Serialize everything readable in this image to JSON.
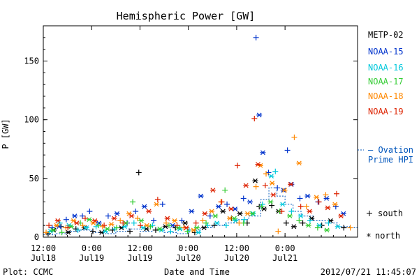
{
  "chart_data": {
    "type": "scatter",
    "title": "Hemispheric Power [GW]",
    "ylabel": "P [GW]",
    "xlabel": "Date and Time",
    "ylim": [
      0,
      180
    ],
    "yticks": [
      0,
      50,
      100,
      150
    ],
    "xlim": [
      -12,
      66
    ],
    "xticks": [
      {
        "x": -12,
        "line1": "12:00",
        "line2": "Jul18"
      },
      {
        "x": 0,
        "line1": "0:00",
        "line2": "Jul19"
      },
      {
        "x": 12,
        "line1": "12:00",
        "line2": "Jul19"
      },
      {
        "x": 24,
        "line1": "0:00",
        "line2": "Jul20"
      },
      {
        "x": 36,
        "line1": "12:00",
        "line2": "Jul20"
      },
      {
        "x": 48,
        "line1": "0:00",
        "line2": "Jul21"
      }
    ],
    "footer_left": "Plot: CCMC",
    "footer_right": "2012/07/21 11:45:07",
    "series": [
      {
        "name": "METP-02",
        "color": "#000000",
        "points": [
          [
            -10.8,
            3,
            "south"
          ],
          [
            -9.4,
            6,
            "north"
          ],
          [
            -7.6,
            9,
            "south"
          ],
          [
            -5.8,
            4,
            "north"
          ],
          [
            -3.9,
            7,
            "south"
          ],
          [
            -1.8,
            8,
            "north"
          ],
          [
            0.3,
            5,
            "south"
          ],
          [
            2.5,
            4,
            "north"
          ],
          [
            5.2,
            6,
            "south"
          ],
          [
            7.4,
            8,
            "north"
          ],
          [
            9.5,
            5,
            "south"
          ],
          [
            11.7,
            55,
            "south"
          ],
          [
            13.6,
            7,
            "north"
          ],
          [
            15.9,
            6,
            "south"
          ],
          [
            18.3,
            9,
            "north"
          ],
          [
            20.8,
            8,
            "south"
          ],
          [
            23.2,
            12,
            "north"
          ],
          [
            25.6,
            4,
            "south"
          ],
          [
            27.9,
            8,
            "north"
          ],
          [
            30.4,
            10,
            "south"
          ],
          [
            32.6,
            22,
            "north"
          ],
          [
            34.7,
            16,
            "south"
          ],
          [
            36.8,
            20,
            "north"
          ],
          [
            38.6,
            12,
            "south"
          ],
          [
            40.6,
            48,
            "north"
          ],
          [
            41.6,
            26,
            "south"
          ],
          [
            42.8,
            24,
            "north"
          ],
          [
            44.7,
            27,
            "south"
          ],
          [
            46.4,
            22,
            "north"
          ],
          [
            48.3,
            12,
            "south"
          ],
          [
            50.2,
            9,
            "north"
          ],
          [
            52.4,
            12,
            "south"
          ],
          [
            54.6,
            16,
            "north"
          ],
          [
            57.1,
            10,
            "south"
          ],
          [
            59.3,
            14,
            "north"
          ],
          [
            62.6,
            8,
            "south"
          ]
        ]
      },
      {
        "name": "NOAA-15",
        "color": "#0033cc",
        "points": [
          [
            -9.8,
            8,
            "south"
          ],
          [
            -8.1,
            9,
            "north"
          ],
          [
            -6.3,
            15,
            "south"
          ],
          [
            -4.2,
            18,
            "north"
          ],
          [
            -2.3,
            18,
            "south"
          ],
          [
            -0.5,
            22,
            "south"
          ],
          [
            1.8,
            12,
            "north"
          ],
          [
            4.1,
            18,
            "south"
          ],
          [
            6.3,
            20,
            "north"
          ],
          [
            8.8,
            12,
            "south"
          ],
          [
            10.9,
            22,
            "south"
          ],
          [
            13.1,
            26,
            "north"
          ],
          [
            15.4,
            14,
            "south"
          ],
          [
            17.6,
            28,
            "south"
          ],
          [
            20.1,
            10,
            "north"
          ],
          [
            22.4,
            14,
            "south"
          ],
          [
            24.8,
            22,
            "north"
          ],
          [
            27.1,
            35,
            "north"
          ],
          [
            29.4,
            18,
            "south"
          ],
          [
            31.5,
            26,
            "north"
          ],
          [
            33.6,
            28,
            "south"
          ],
          [
            35.6,
            24,
            "north"
          ],
          [
            37.7,
            33,
            "south"
          ],
          [
            39.3,
            30,
            "north"
          ],
          [
            40.8,
            170,
            "south"
          ],
          [
            41.6,
            104,
            "north"
          ],
          [
            42.5,
            72,
            "north"
          ],
          [
            43.9,
            55,
            "south"
          ],
          [
            46.1,
            42,
            "south"
          ],
          [
            47.6,
            40,
            "north"
          ],
          [
            48.6,
            74,
            "south"
          ],
          [
            49.6,
            45,
            "north"
          ],
          [
            51.7,
            33,
            "south"
          ],
          [
            53.6,
            35,
            "north"
          ],
          [
            56.2,
            30,
            "south"
          ],
          [
            58.3,
            33,
            "north"
          ],
          [
            60.6,
            26,
            "south"
          ],
          [
            62.5,
            20,
            "north"
          ]
        ]
      },
      {
        "name": "NOAA-16",
        "color": "#00c8dc",
        "points": [
          [
            -10.2,
            5,
            "north"
          ],
          [
            -7.9,
            12,
            "south"
          ],
          [
            -5.6,
            10,
            "north"
          ],
          [
            -3.4,
            6,
            "south"
          ],
          [
            -1.3,
            8,
            "north"
          ],
          [
            1.1,
            9,
            "south"
          ],
          [
            3.4,
            5,
            "north"
          ],
          [
            5.7,
            7,
            "south"
          ],
          [
            8.2,
            9,
            "north"
          ],
          [
            10.5,
            12,
            "south"
          ],
          [
            12.8,
            8,
            "north"
          ],
          [
            15.1,
            10,
            "south"
          ],
          [
            17.3,
            6,
            "north"
          ],
          [
            19.6,
            5,
            "south"
          ],
          [
            21.9,
            7,
            "north"
          ],
          [
            24.2,
            6,
            "south"
          ],
          [
            26.5,
            4,
            "north"
          ],
          [
            28.8,
            10,
            "south"
          ],
          [
            31.1,
            12,
            "north"
          ],
          [
            33.4,
            10,
            "south"
          ],
          [
            35.7,
            14,
            "north"
          ],
          [
            37.9,
            15,
            "south"
          ],
          [
            40.1,
            20,
            "north"
          ],
          [
            42.4,
            28,
            "south"
          ],
          [
            44.6,
            52,
            "north"
          ],
          [
            45.6,
            56,
            "south"
          ],
          [
            47.4,
            28,
            "north"
          ],
          [
            49.6,
            22,
            "south"
          ],
          [
            51.9,
            18,
            "north"
          ],
          [
            54.2,
            14,
            "south"
          ],
          [
            56.5,
            10,
            "north"
          ],
          [
            58.8,
            12,
            "south"
          ],
          [
            61.1,
            9,
            "north"
          ]
        ]
      },
      {
        "name": "NOAA-17",
        "color": "#33cc33",
        "points": [
          [
            -9.6,
            6,
            "north"
          ],
          [
            -7.4,
            4,
            "south"
          ],
          [
            -5.1,
            9,
            "north"
          ],
          [
            -2.8,
            12,
            "south"
          ],
          [
            -0.6,
            15,
            "north"
          ],
          [
            1.7,
            10,
            "south"
          ],
          [
            3.9,
            7,
            "north"
          ],
          [
            6.2,
            8,
            "south"
          ],
          [
            8.5,
            12,
            "north"
          ],
          [
            10.2,
            30,
            "south"
          ],
          [
            12.3,
            14,
            "north"
          ],
          [
            14.6,
            9,
            "south"
          ],
          [
            16.9,
            7,
            "north"
          ],
          [
            19.2,
            10,
            "south"
          ],
          [
            21.5,
            8,
            "north"
          ],
          [
            23.8,
            5,
            "south"
          ],
          [
            26.1,
            8,
            "north"
          ],
          [
            28.4,
            12,
            "south"
          ],
          [
            30.7,
            18,
            "north"
          ],
          [
            33.1,
            40,
            "south"
          ],
          [
            35.4,
            16,
            "north"
          ],
          [
            37.7,
            12,
            "south"
          ],
          [
            39.9,
            20,
            "north"
          ],
          [
            42.2,
            26,
            "south"
          ],
          [
            44.4,
            30,
            "north"
          ],
          [
            46.7,
            22,
            "south"
          ],
          [
            49.2,
            18,
            "north"
          ],
          [
            51.5,
            14,
            "south"
          ],
          [
            53.8,
            10,
            "north"
          ],
          [
            56.1,
            8,
            "south"
          ],
          [
            58.4,
            6,
            "north"
          ]
        ]
      },
      {
        "name": "NOAA-18",
        "color": "#ff8800",
        "points": [
          [
            -11.3,
            4,
            "south"
          ],
          [
            -8.7,
            10,
            "north"
          ],
          [
            -6.4,
            8,
            "south"
          ],
          [
            -4.5,
            14,
            "north"
          ],
          [
            -2.2,
            10,
            "south"
          ],
          [
            0.4,
            12,
            "north"
          ],
          [
            2.7,
            9,
            "south"
          ],
          [
            4.9,
            11,
            "north"
          ],
          [
            7.1,
            14,
            "south"
          ],
          [
            9.3,
            20,
            "north"
          ],
          [
            11.4,
            16,
            "south"
          ],
          [
            13.7,
            10,
            "north"
          ],
          [
            16.1,
            28,
            "north"
          ],
          [
            18.5,
            12,
            "south"
          ],
          [
            20.6,
            14,
            "north"
          ],
          [
            22.9,
            8,
            "south"
          ],
          [
            25.3,
            6,
            "north"
          ],
          [
            27.6,
            14,
            "south"
          ],
          [
            29.8,
            22,
            "north"
          ],
          [
            32.1,
            30,
            "south"
          ],
          [
            34.3,
            16,
            "north"
          ],
          [
            36.6,
            12,
            "south"
          ],
          [
            38.7,
            20,
            "north"
          ],
          [
            40.8,
            43,
            "south"
          ],
          [
            41.9,
            61,
            "north"
          ],
          [
            43.3,
            54,
            "south"
          ],
          [
            44.8,
            46,
            "north"
          ],
          [
            46.3,
            5,
            "south"
          ],
          [
            47.9,
            40,
            "north"
          ],
          [
            50.3,
            85,
            "south"
          ],
          [
            51.5,
            63,
            "north"
          ],
          [
            53.3,
            26,
            "south"
          ],
          [
            55.8,
            34,
            "north"
          ],
          [
            58.1,
            36,
            "south"
          ],
          [
            60.4,
            28,
            "north"
          ],
          [
            64.2,
            8,
            "south"
          ]
        ]
      },
      {
        "name": "NOAA-19",
        "color": "#dd2200",
        "points": [
          [
            -10.6,
            10,
            "south"
          ],
          [
            -8.4,
            14,
            "north"
          ],
          [
            -5.9,
            8,
            "south"
          ],
          [
            -3.7,
            12,
            "north"
          ],
          [
            -1.6,
            16,
            "south"
          ],
          [
            0.8,
            14,
            "north"
          ],
          [
            3.1,
            10,
            "south"
          ],
          [
            5.6,
            16,
            "north"
          ],
          [
            7.8,
            12,
            "south"
          ],
          [
            9.9,
            18,
            "north"
          ],
          [
            12.1,
            10,
            "south"
          ],
          [
            14.2,
            22,
            "north"
          ],
          [
            16.4,
            32,
            "south"
          ],
          [
            18.8,
            16,
            "north"
          ],
          [
            21.2,
            10,
            "south"
          ],
          [
            23.5,
            8,
            "north"
          ],
          [
            25.9,
            12,
            "south"
          ],
          [
            28.1,
            20,
            "north"
          ],
          [
            30.1,
            40,
            "north"
          ],
          [
            32.3,
            30,
            "south"
          ],
          [
            34.6,
            24,
            "north"
          ],
          [
            36.2,
            61,
            "south"
          ],
          [
            38.3,
            44,
            "north"
          ],
          [
            40.4,
            101,
            "south"
          ],
          [
            41.3,
            62,
            "north"
          ],
          [
            43.1,
            44,
            "south"
          ],
          [
            45.1,
            36,
            "north"
          ],
          [
            47.2,
            22,
            "south"
          ],
          [
            49.4,
            45,
            "north"
          ],
          [
            51.9,
            26,
            "south"
          ],
          [
            54.1,
            22,
            "north"
          ],
          [
            56.4,
            30,
            "south"
          ],
          [
            58.6,
            25,
            "north"
          ],
          [
            60.8,
            37,
            "south"
          ],
          [
            61.9,
            18,
            "north"
          ]
        ]
      }
    ],
    "ovation": {
      "label_line1": "— Ovation",
      "label_line2": "Prime HPI",
      "color": "#0055bb",
      "steps": [
        [
          -12,
          2
        ],
        [
          -9,
          3
        ],
        [
          -6,
          5
        ],
        [
          -3,
          6
        ],
        [
          0,
          4
        ],
        [
          3,
          3
        ],
        [
          6,
          5
        ],
        [
          9,
          7
        ],
        [
          12,
          5
        ],
        [
          15,
          6
        ],
        [
          18,
          4
        ],
        [
          21,
          3
        ],
        [
          24,
          6
        ],
        [
          27,
          8
        ],
        [
          30,
          10
        ],
        [
          33,
          12
        ],
        [
          36,
          15
        ],
        [
          39,
          18
        ],
        [
          42,
          32
        ],
        [
          44,
          42
        ],
        [
          46,
          35
        ],
        [
          48,
          28
        ],
        [
          50,
          22
        ],
        [
          52,
          18
        ],
        [
          55,
          14
        ],
        [
          58,
          12
        ],
        [
          61,
          9
        ],
        [
          64,
          8
        ],
        [
          66,
          8
        ]
      ]
    },
    "marker_legend": {
      "south": "south",
      "north": "north"
    }
  }
}
